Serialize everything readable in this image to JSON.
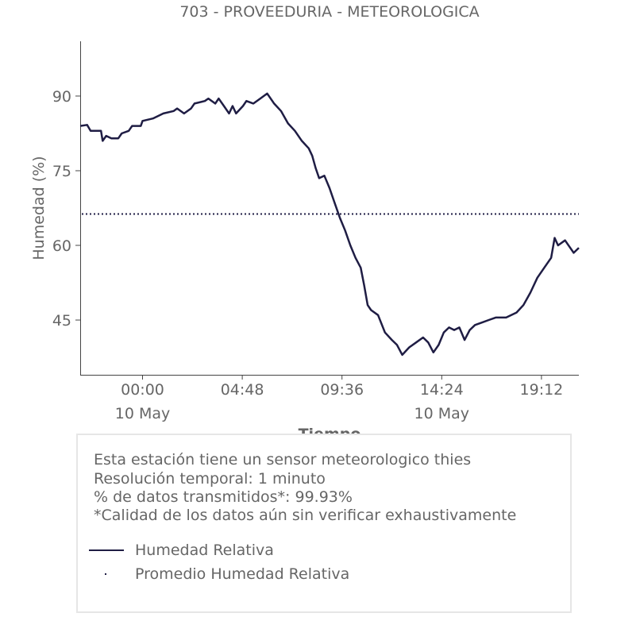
{
  "chart_data": {
    "type": "line",
    "title": "703 - PROVEEDURIA - METEOROLOGICA",
    "xlabel": "Tiempo",
    "ylabel": "Humedad (%)",
    "x_ticks": [
      {
        "t": "00:00",
        "date": "10 May"
      },
      {
        "t": "04:48",
        "date": ""
      },
      {
        "t": "09:36",
        "date": ""
      },
      {
        "t": "14:24",
        "date": "10 May"
      },
      {
        "t": "19:12",
        "date": ""
      }
    ],
    "y_ticks": [
      45,
      60,
      75,
      90
    ],
    "ylim": [
      34,
      101
    ],
    "xlim": [
      "09 May 21:00",
      "10 May 21:00"
    ],
    "colors": {
      "series": "#1f1d44",
      "axis": "#444444",
      "text": "#666666"
    },
    "series": [
      {
        "name": "Humedad Relativa",
        "style": "solid",
        "points": [
          [
            "09 May 21:00",
            84
          ],
          [
            "09 May 21:20",
            84.2
          ],
          [
            "09 May 21:30",
            83
          ],
          [
            "09 May 22:00",
            83
          ],
          [
            "09 May 22:05",
            81
          ],
          [
            "09 May 22:15",
            82
          ],
          [
            "09 May 22:30",
            81.5
          ],
          [
            "09 May 22:50",
            81.5
          ],
          [
            "09 May 23:00",
            82.5
          ],
          [
            "09 May 23:20",
            83
          ],
          [
            "09 May 23:30",
            84
          ],
          [
            "09 May 23:55",
            84
          ],
          [
            "10 May 00:00",
            85
          ],
          [
            "10 May 00:30",
            85.5
          ],
          [
            "10 May 01:00",
            86.5
          ],
          [
            "10 May 01:30",
            87
          ],
          [
            "10 May 01:40",
            87.5
          ],
          [
            "10 May 02:00",
            86.5
          ],
          [
            "10 May 02:20",
            87.5
          ],
          [
            "10 May 02:30",
            88.5
          ],
          [
            "10 May 03:00",
            89
          ],
          [
            "10 May 03:10",
            89.5
          ],
          [
            "10 May 03:30",
            88.5
          ],
          [
            "10 May 03:40",
            89.5
          ],
          [
            "10 May 03:55",
            88
          ],
          [
            "10 May 04:10",
            86.5
          ],
          [
            "10 May 04:20",
            88
          ],
          [
            "10 May 04:30",
            86.5
          ],
          [
            "10 May 04:50",
            88
          ],
          [
            "10 May 05:00",
            89
          ],
          [
            "10 May 05:20",
            88.5
          ],
          [
            "10 May 05:40",
            89.5
          ],
          [
            "10 May 06:00",
            90.5
          ],
          [
            "10 May 06:20",
            88.5
          ],
          [
            "10 May 06:40",
            87
          ],
          [
            "10 May 07:00",
            84.5
          ],
          [
            "10 May 07:20",
            83
          ],
          [
            "10 May 07:40",
            81
          ],
          [
            "10 May 08:00",
            79.5
          ],
          [
            "10 May 08:10",
            78
          ],
          [
            "10 May 08:20",
            75.5
          ],
          [
            "10 May 08:30",
            73.5
          ],
          [
            "10 May 08:45",
            74
          ],
          [
            "10 May 09:00",
            71.5
          ],
          [
            "10 May 09:15",
            68.5
          ],
          [
            "10 May 09:30",
            65.5
          ],
          [
            "10 May 09:45",
            63
          ],
          [
            "10 May 10:00",
            60
          ],
          [
            "10 May 10:15",
            57.5
          ],
          [
            "10 May 10:30",
            55.5
          ],
          [
            "10 May 10:40",
            52
          ],
          [
            "10 May 10:50",
            48
          ],
          [
            "10 May 11:00",
            47
          ],
          [
            "10 May 11:20",
            46
          ],
          [
            "10 May 11:40",
            42.5
          ],
          [
            "10 May 12:00",
            41
          ],
          [
            "10 May 12:15",
            40
          ],
          [
            "10 May 12:30",
            38
          ],
          [
            "10 May 12:50",
            39.5
          ],
          [
            "10 May 13:10",
            40.5
          ],
          [
            "10 May 13:30",
            41.5
          ],
          [
            "10 May 13:45",
            40.5
          ],
          [
            "10 May 14:00",
            38.5
          ],
          [
            "10 May 14:15",
            40
          ],
          [
            "10 May 14:30",
            42.5
          ],
          [
            "10 May 14:45",
            43.5
          ],
          [
            "10 May 15:00",
            43
          ],
          [
            "10 May 15:15",
            43.5
          ],
          [
            "10 May 15:30",
            41
          ],
          [
            "10 May 15:45",
            43
          ],
          [
            "10 May 16:00",
            44
          ],
          [
            "10 May 16:20",
            44.5
          ],
          [
            "10 May 16:40",
            45
          ],
          [
            "10 May 17:00",
            45.5
          ],
          [
            "10 May 17:30",
            45.5
          ],
          [
            "10 May 18:00",
            46.5
          ],
          [
            "10 May 18:20",
            48
          ],
          [
            "10 May 18:40",
            50.5
          ],
          [
            "10 May 19:00",
            53.5
          ],
          [
            "10 May 19:20",
            55.5
          ],
          [
            "10 May 19:40",
            57.5
          ],
          [
            "10 May 19:50",
            61.5
          ],
          [
            "10 May 20:00",
            60
          ],
          [
            "10 May 20:20",
            61
          ],
          [
            "10 May 20:35",
            59.5
          ],
          [
            "10 May 20:45",
            58.5
          ],
          [
            "10 May 21:00",
            59.5
          ]
        ]
      },
      {
        "name": "Promedio Humedad Relativa",
        "style": "dotted",
        "value": 66.3
      }
    ]
  },
  "info": {
    "lines": [
      "Esta estación tiene un sensor meteorologico thies",
      "Resolución temporal: 1 minuto",
      "% de datos transmitidos*: 99.93%",
      "*Calidad de los datos aún sin verificar exhaustivamente"
    ]
  },
  "legend": {
    "items": [
      {
        "label": "Humedad Relativa",
        "style": "solid"
      },
      {
        "label": "Promedio Humedad Relativa",
        "style": "dotted"
      }
    ]
  }
}
